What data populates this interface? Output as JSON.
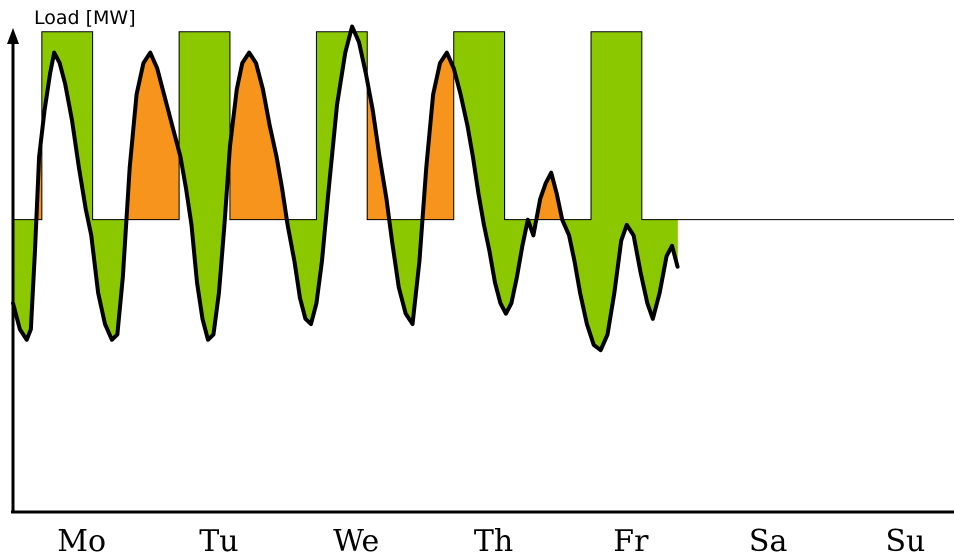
{
  "chart_data": {
    "type": "line",
    "title": "",
    "ylabel": "Load [MW]",
    "xlabel": "",
    "categories": [
      "Mo",
      "Tu",
      "We",
      "Th",
      "Fr",
      "Sa",
      "Su"
    ],
    "xlim": [
      0,
      7
    ],
    "ylim": [
      0,
      100
    ],
    "grid": false,
    "legend": "none",
    "colors": {
      "load_curve": "#000000",
      "surplus_fill": "#8cc800",
      "deficit_fill": "#f7941d",
      "block_outline": "#000000"
    },
    "base_level": 56,
    "peak_level": 92,
    "peak_blocks": [
      {
        "day": "Mo",
        "start": 0.21,
        "end": 0.58
      },
      {
        "day": "Tu",
        "start": 1.21,
        "end": 1.58
      },
      {
        "day": "We",
        "start": 2.21,
        "end": 2.58
      },
      {
        "day": "Th",
        "start": 3.21,
        "end": 3.58
      },
      {
        "day": "Fr",
        "start": 4.21,
        "end": 4.58
      }
    ],
    "load_curve": [
      [
        0.0,
        40
      ],
      [
        0.05,
        35
      ],
      [
        0.1,
        33
      ],
      [
        0.13,
        35
      ],
      [
        0.16,
        50
      ],
      [
        0.19,
        68
      ],
      [
        0.23,
        77
      ],
      [
        0.27,
        84
      ],
      [
        0.3,
        88
      ],
      [
        0.34,
        86
      ],
      [
        0.38,
        82
      ],
      [
        0.43,
        75
      ],
      [
        0.48,
        66
      ],
      [
        0.53,
        58
      ],
      [
        0.57,
        53
      ],
      [
        0.62,
        42
      ],
      [
        0.67,
        36
      ],
      [
        0.72,
        33
      ],
      [
        0.76,
        34
      ],
      [
        0.8,
        45
      ],
      [
        0.85,
        66
      ],
      [
        0.9,
        80
      ],
      [
        0.95,
        86
      ],
      [
        1.0,
        88
      ],
      [
        1.05,
        85
      ],
      [
        1.1,
        80
      ],
      [
        1.16,
        74
      ],
      [
        1.22,
        68
      ],
      [
        1.26,
        62
      ],
      [
        1.3,
        55
      ],
      [
        1.34,
        44
      ],
      [
        1.38,
        37
      ],
      [
        1.42,
        33
      ],
      [
        1.46,
        34
      ],
      [
        1.5,
        42
      ],
      [
        1.54,
        55
      ],
      [
        1.58,
        70
      ],
      [
        1.63,
        81
      ],
      [
        1.67,
        86
      ],
      [
        1.72,
        88
      ],
      [
        1.77,
        86
      ],
      [
        1.82,
        81
      ],
      [
        1.87,
        74
      ],
      [
        1.92,
        68
      ],
      [
        1.96,
        62
      ],
      [
        2.0,
        55
      ],
      [
        2.05,
        48
      ],
      [
        2.09,
        41
      ],
      [
        2.13,
        37
      ],
      [
        2.17,
        36
      ],
      [
        2.21,
        40
      ],
      [
        2.25,
        48
      ],
      [
        2.3,
        62
      ],
      [
        2.36,
        78
      ],
      [
        2.42,
        88
      ],
      [
        2.47,
        93
      ],
      [
        2.52,
        90
      ],
      [
        2.57,
        84
      ],
      [
        2.62,
        77
      ],
      [
        2.67,
        68
      ],
      [
        2.72,
        60
      ],
      [
        2.76,
        52
      ],
      [
        2.81,
        43
      ],
      [
        2.86,
        38
      ],
      [
        2.91,
        36
      ],
      [
        2.96,
        48
      ],
      [
        3.01,
        66
      ],
      [
        3.06,
        80
      ],
      [
        3.11,
        86
      ],
      [
        3.16,
        88
      ],
      [
        3.21,
        85
      ],
      [
        3.26,
        80
      ],
      [
        3.31,
        74
      ],
      [
        3.35,
        68
      ],
      [
        3.39,
        61
      ],
      [
        3.43,
        55
      ],
      [
        3.47,
        50
      ],
      [
        3.51,
        44
      ],
      [
        3.55,
        40
      ],
      [
        3.59,
        38
      ],
      [
        3.63,
        40
      ],
      [
        3.67,
        45
      ],
      [
        3.71,
        51
      ],
      [
        3.75,
        56
      ],
      [
        3.79,
        53
      ],
      [
        3.84,
        60
      ],
      [
        3.88,
        63
      ],
      [
        3.92,
        65
      ],
      [
        3.96,
        61
      ],
      [
        4.0,
        56
      ],
      [
        4.05,
        53
      ],
      [
        4.09,
        48
      ],
      [
        4.13,
        42
      ],
      [
        4.18,
        36
      ],
      [
        4.23,
        32
      ],
      [
        4.28,
        31
      ],
      [
        4.33,
        34
      ],
      [
        4.38,
        42
      ],
      [
        4.43,
        52
      ],
      [
        4.47,
        55
      ],
      [
        4.52,
        53
      ],
      [
        4.57,
        46
      ],
      [
        4.62,
        40
      ],
      [
        4.66,
        37
      ],
      [
        4.71,
        42
      ],
      [
        4.76,
        49
      ],
      [
        4.8,
        51
      ],
      [
        4.84,
        47
      ]
    ]
  }
}
